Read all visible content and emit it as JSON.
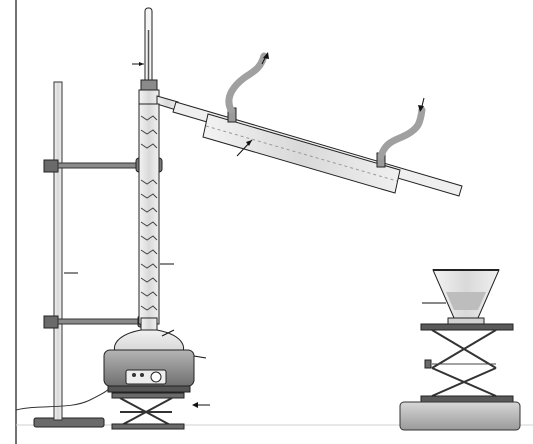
{
  "diagram": {
    "kind": "fractional-distillation-apparatus",
    "labels": [],
    "colors": {
      "line": "#1a1a1a",
      "glass": "#e7e7e7",
      "glass_dark": "#cfcfcf",
      "metal": "#7a7a7a",
      "metal_dark": "#4a4a4a",
      "hose": "#a4a4a4",
      "liquid": "#d8d8d8",
      "distillate": "#bdbdbd",
      "heater_body": "#8f8f8f",
      "base": "#c8c8c8"
    },
    "parts": [
      "retort-stand",
      "boss-clamp",
      "round-bottom-flask",
      "fractionating-column",
      "thermometer",
      "liebig-condenser",
      "cooling-water-hose",
      "heating-mantle",
      "lab-jack",
      "receiving-flask"
    ]
  }
}
